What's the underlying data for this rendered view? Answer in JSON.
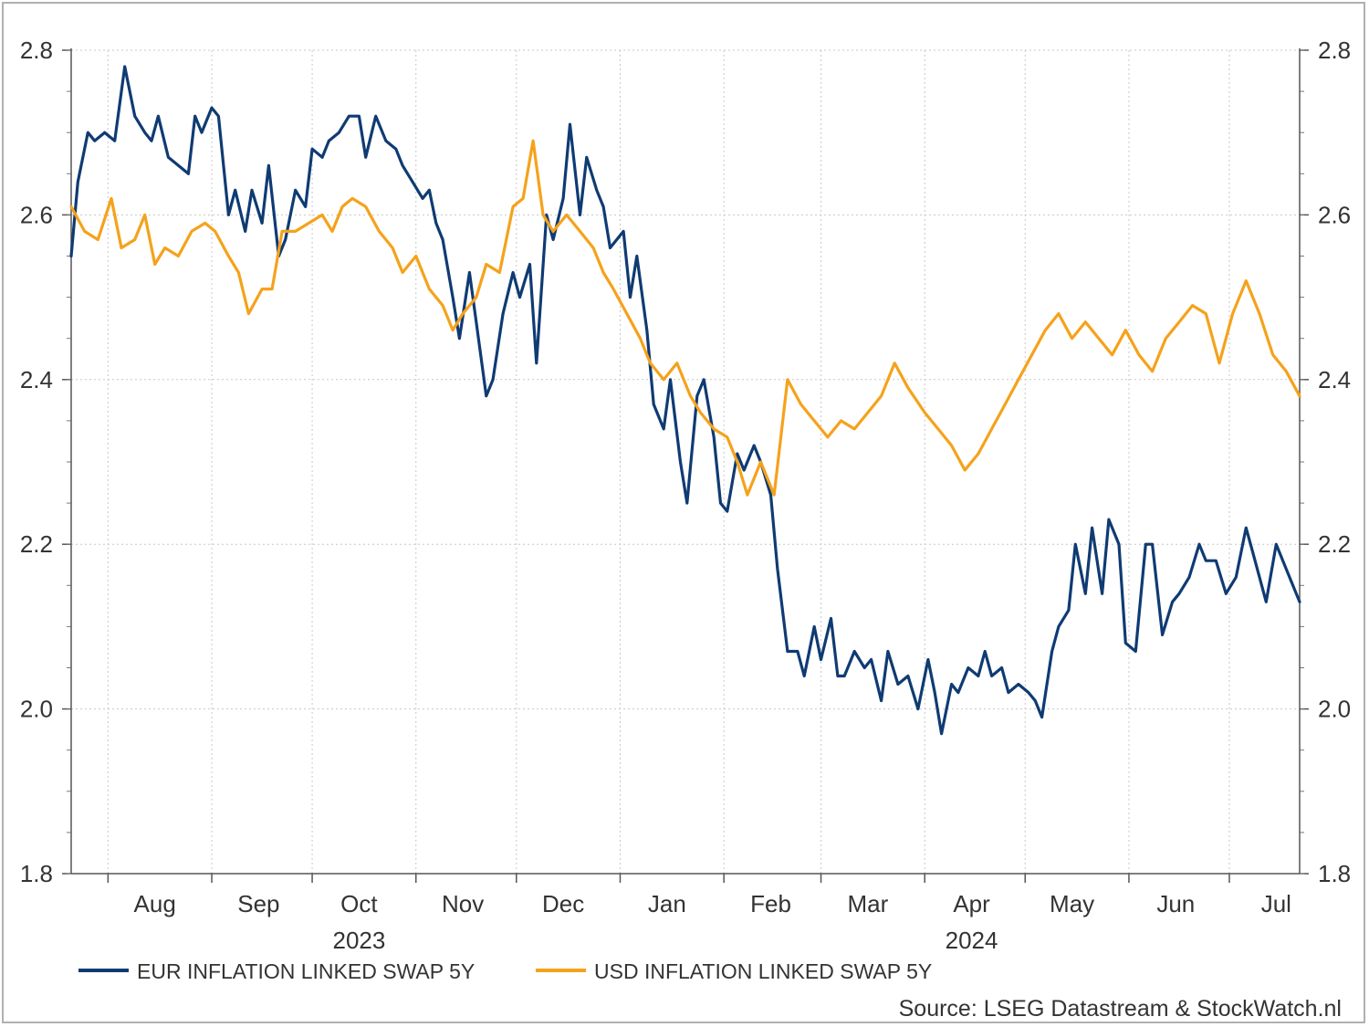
{
  "chart_data": {
    "type": "line",
    "x_axis": {
      "type": "date",
      "range": [
        "2023-07-21",
        "2024-07-22"
      ],
      "tick_labels": [
        {
          "label": "Aug",
          "date": "2023-08-15"
        },
        {
          "label": "Sep",
          "date": "2023-09-15"
        },
        {
          "label": "Oct",
          "date": "2023-10-15"
        },
        {
          "label": "Nov",
          "date": "2023-11-15"
        },
        {
          "label": "Dec",
          "date": "2023-12-15"
        },
        {
          "label": "Jan",
          "date": "2024-01-15"
        },
        {
          "label": "Feb",
          "date": "2024-02-15"
        },
        {
          "label": "Mar",
          "date": "2024-03-15"
        },
        {
          "label": "Apr",
          "date": "2024-04-15"
        },
        {
          "label": "May",
          "date": "2024-05-15"
        },
        {
          "label": "Jun",
          "date": "2024-06-15"
        },
        {
          "label": "Jul",
          "date": "2024-07-15"
        }
      ],
      "month_boundaries": [
        "2023-08-01",
        "2023-09-01",
        "2023-10-01",
        "2023-11-01",
        "2023-12-01",
        "2024-01-01",
        "2024-02-01",
        "2024-03-01",
        "2024-04-01",
        "2024-05-01",
        "2024-06-01",
        "2024-07-01"
      ],
      "year_labels": [
        {
          "label": "2023",
          "date": "2023-10-15"
        },
        {
          "label": "2024",
          "date": "2024-04-15"
        }
      ]
    },
    "y_axis": {
      "range": [
        1.8,
        2.8
      ],
      "ticks": [
        1.8,
        2.0,
        2.2,
        2.4,
        2.6,
        2.8
      ],
      "tick_labels": [
        "1.8",
        "2.0",
        "2.2",
        "2.4",
        "2.6",
        "2.8"
      ],
      "minor_step": 0.05,
      "right_axis_mirrored": true
    },
    "grid": true,
    "legend_position": "bottom-left",
    "series": [
      {
        "name": "EUR INFLATION LINKED SWAP 5Y",
        "color": "#0f3b73",
        "points": [
          [
            "2023-07-21",
            2.55
          ],
          [
            "2023-07-23",
            2.64
          ],
          [
            "2023-07-26",
            2.7
          ],
          [
            "2023-07-28",
            2.69
          ],
          [
            "2023-07-31",
            2.7
          ],
          [
            "2023-08-03",
            2.69
          ],
          [
            "2023-08-06",
            2.78
          ],
          [
            "2023-08-09",
            2.72
          ],
          [
            "2023-08-12",
            2.7
          ],
          [
            "2023-08-14",
            2.69
          ],
          [
            "2023-08-16",
            2.72
          ],
          [
            "2023-08-19",
            2.67
          ],
          [
            "2023-08-22",
            2.66
          ],
          [
            "2023-08-25",
            2.65
          ],
          [
            "2023-08-27",
            2.72
          ],
          [
            "2023-08-29",
            2.7
          ],
          [
            "2023-09-01",
            2.73
          ],
          [
            "2023-09-03",
            2.72
          ],
          [
            "2023-09-06",
            2.6
          ],
          [
            "2023-09-08",
            2.63
          ],
          [
            "2023-09-11",
            2.58
          ],
          [
            "2023-09-13",
            2.63
          ],
          [
            "2023-09-16",
            2.59
          ],
          [
            "2023-09-18",
            2.66
          ],
          [
            "2023-09-21",
            2.55
          ],
          [
            "2023-09-23",
            2.57
          ],
          [
            "2023-09-26",
            2.63
          ],
          [
            "2023-09-29",
            2.61
          ],
          [
            "2023-10-01",
            2.68
          ],
          [
            "2023-10-04",
            2.67
          ],
          [
            "2023-10-06",
            2.69
          ],
          [
            "2023-10-09",
            2.7
          ],
          [
            "2023-10-12",
            2.72
          ],
          [
            "2023-10-15",
            2.72
          ],
          [
            "2023-10-17",
            2.67
          ],
          [
            "2023-10-20",
            2.72
          ],
          [
            "2023-10-23",
            2.69
          ],
          [
            "2023-10-26",
            2.68
          ],
          [
            "2023-10-28",
            2.66
          ],
          [
            "2023-10-31",
            2.64
          ],
          [
            "2023-11-03",
            2.62
          ],
          [
            "2023-11-05",
            2.63
          ],
          [
            "2023-11-07",
            2.59
          ],
          [
            "2023-11-09",
            2.57
          ],
          [
            "2023-11-12",
            2.5
          ],
          [
            "2023-11-14",
            2.45
          ],
          [
            "2023-11-17",
            2.53
          ],
          [
            "2023-11-19",
            2.47
          ],
          [
            "2023-11-22",
            2.38
          ],
          [
            "2023-11-24",
            2.4
          ],
          [
            "2023-11-27",
            2.48
          ],
          [
            "2023-11-30",
            2.53
          ],
          [
            "2023-12-02",
            2.5
          ],
          [
            "2023-12-05",
            2.54
          ],
          [
            "2023-12-07",
            2.42
          ],
          [
            "2023-12-10",
            2.6
          ],
          [
            "2023-12-12",
            2.57
          ],
          [
            "2023-12-15",
            2.62
          ],
          [
            "2023-12-17",
            2.71
          ],
          [
            "2023-12-20",
            2.6
          ],
          [
            "2023-12-22",
            2.67
          ],
          [
            "2023-12-25",
            2.63
          ],
          [
            "2023-12-27",
            2.61
          ],
          [
            "2023-12-29",
            2.56
          ],
          [
            "2024-01-02",
            2.58
          ],
          [
            "2024-01-04",
            2.5
          ],
          [
            "2024-01-06",
            2.55
          ],
          [
            "2024-01-09",
            2.46
          ],
          [
            "2024-01-11",
            2.37
          ],
          [
            "2024-01-14",
            2.34
          ],
          [
            "2024-01-16",
            2.4
          ],
          [
            "2024-01-19",
            2.3
          ],
          [
            "2024-01-21",
            2.25
          ],
          [
            "2024-01-24",
            2.38
          ],
          [
            "2024-01-26",
            2.4
          ],
          [
            "2024-01-29",
            2.33
          ],
          [
            "2024-01-31",
            2.25
          ],
          [
            "2024-02-02",
            2.24
          ],
          [
            "2024-02-05",
            2.31
          ],
          [
            "2024-02-07",
            2.29
          ],
          [
            "2024-02-10",
            2.32
          ],
          [
            "2024-02-12",
            2.3
          ],
          [
            "2024-02-15",
            2.26
          ],
          [
            "2024-02-17",
            2.17
          ],
          [
            "2024-02-20",
            2.07
          ],
          [
            "2024-02-23",
            2.07
          ],
          [
            "2024-02-25",
            2.04
          ],
          [
            "2024-02-28",
            2.1
          ],
          [
            "2024-03-01",
            2.06
          ],
          [
            "2024-03-04",
            2.11
          ],
          [
            "2024-03-06",
            2.04
          ],
          [
            "2024-03-08",
            2.04
          ],
          [
            "2024-03-11",
            2.07
          ],
          [
            "2024-03-14",
            2.05
          ],
          [
            "2024-03-16",
            2.06
          ],
          [
            "2024-03-19",
            2.01
          ],
          [
            "2024-03-21",
            2.07
          ],
          [
            "2024-03-24",
            2.03
          ],
          [
            "2024-03-27",
            2.04
          ],
          [
            "2024-03-30",
            2.0
          ],
          [
            "2024-04-02",
            2.06
          ],
          [
            "2024-04-04",
            2.02
          ],
          [
            "2024-04-06",
            1.97
          ],
          [
            "2024-04-09",
            2.03
          ],
          [
            "2024-04-11",
            2.02
          ],
          [
            "2024-04-14",
            2.05
          ],
          [
            "2024-04-17",
            2.04
          ],
          [
            "2024-04-19",
            2.07
          ],
          [
            "2024-04-21",
            2.04
          ],
          [
            "2024-04-24",
            2.05
          ],
          [
            "2024-04-26",
            2.02
          ],
          [
            "2024-04-29",
            2.03
          ],
          [
            "2024-05-02",
            2.02
          ],
          [
            "2024-05-04",
            2.01
          ],
          [
            "2024-05-06",
            1.99
          ],
          [
            "2024-05-09",
            2.07
          ],
          [
            "2024-05-11",
            2.1
          ],
          [
            "2024-05-14",
            2.12
          ],
          [
            "2024-05-16",
            2.2
          ],
          [
            "2024-05-19",
            2.14
          ],
          [
            "2024-05-21",
            2.22
          ],
          [
            "2024-05-24",
            2.14
          ],
          [
            "2024-05-26",
            2.23
          ],
          [
            "2024-05-29",
            2.2
          ],
          [
            "2024-05-31",
            2.08
          ],
          [
            "2024-06-03",
            2.07
          ],
          [
            "2024-06-06",
            2.2
          ],
          [
            "2024-06-08",
            2.2
          ],
          [
            "2024-06-11",
            2.09
          ],
          [
            "2024-06-14",
            2.13
          ],
          [
            "2024-06-16",
            2.14
          ],
          [
            "2024-06-19",
            2.16
          ],
          [
            "2024-06-22",
            2.2
          ],
          [
            "2024-06-24",
            2.18
          ],
          [
            "2024-06-27",
            2.18
          ],
          [
            "2024-06-30",
            2.14
          ],
          [
            "2024-07-03",
            2.16
          ],
          [
            "2024-07-06",
            2.22
          ],
          [
            "2024-07-08",
            2.19
          ],
          [
            "2024-07-12",
            2.13
          ],
          [
            "2024-07-15",
            2.2
          ],
          [
            "2024-07-18",
            2.17
          ],
          [
            "2024-07-21",
            2.14
          ],
          [
            "2024-07-22",
            2.13
          ]
        ]
      },
      {
        "name": "USD INFLATION LINKED SWAP 5Y",
        "color": "#f5a21b",
        "points": [
          [
            "2023-07-21",
            2.61
          ],
          [
            "2023-07-25",
            2.58
          ],
          [
            "2023-07-29",
            2.57
          ],
          [
            "2023-08-02",
            2.62
          ],
          [
            "2023-08-05",
            2.56
          ],
          [
            "2023-08-09",
            2.57
          ],
          [
            "2023-08-12",
            2.6
          ],
          [
            "2023-08-15",
            2.54
          ],
          [
            "2023-08-18",
            2.56
          ],
          [
            "2023-08-22",
            2.55
          ],
          [
            "2023-08-26",
            2.58
          ],
          [
            "2023-08-30",
            2.59
          ],
          [
            "2023-09-02",
            2.58
          ],
          [
            "2023-09-06",
            2.55
          ],
          [
            "2023-09-09",
            2.53
          ],
          [
            "2023-09-12",
            2.48
          ],
          [
            "2023-09-16",
            2.51
          ],
          [
            "2023-09-19",
            2.51
          ],
          [
            "2023-09-22",
            2.58
          ],
          [
            "2023-09-26",
            2.58
          ],
          [
            "2023-09-30",
            2.59
          ],
          [
            "2023-10-04",
            2.6
          ],
          [
            "2023-10-07",
            2.58
          ],
          [
            "2023-10-10",
            2.61
          ],
          [
            "2023-10-13",
            2.62
          ],
          [
            "2023-10-17",
            2.61
          ],
          [
            "2023-10-21",
            2.58
          ],
          [
            "2023-10-25",
            2.56
          ],
          [
            "2023-10-28",
            2.53
          ],
          [
            "2023-11-01",
            2.55
          ],
          [
            "2023-11-05",
            2.51
          ],
          [
            "2023-11-09",
            2.49
          ],
          [
            "2023-11-12",
            2.46
          ],
          [
            "2023-11-15",
            2.48
          ],
          [
            "2023-11-19",
            2.5
          ],
          [
            "2023-11-22",
            2.54
          ],
          [
            "2023-11-26",
            2.53
          ],
          [
            "2023-11-30",
            2.61
          ],
          [
            "2023-12-03",
            2.62
          ],
          [
            "2023-12-06",
            2.69
          ],
          [
            "2023-12-09",
            2.6
          ],
          [
            "2023-12-12",
            2.58
          ],
          [
            "2023-12-16",
            2.6
          ],
          [
            "2023-12-20",
            2.58
          ],
          [
            "2023-12-24",
            2.56
          ],
          [
            "2023-12-27",
            2.53
          ],
          [
            "2023-12-30",
            2.51
          ],
          [
            "2024-01-03",
            2.48
          ],
          [
            "2024-01-07",
            2.45
          ],
          [
            "2024-01-10",
            2.42
          ],
          [
            "2024-01-14",
            2.4
          ],
          [
            "2024-01-18",
            2.42
          ],
          [
            "2024-01-22",
            2.38
          ],
          [
            "2024-01-25",
            2.36
          ],
          [
            "2024-01-29",
            2.34
          ],
          [
            "2024-02-02",
            2.33
          ],
          [
            "2024-02-05",
            2.3
          ],
          [
            "2024-02-08",
            2.26
          ],
          [
            "2024-02-12",
            2.3
          ],
          [
            "2024-02-16",
            2.26
          ],
          [
            "2024-02-20",
            2.4
          ],
          [
            "2024-02-24",
            2.37
          ],
          [
            "2024-02-28",
            2.35
          ],
          [
            "2024-03-03",
            2.33
          ],
          [
            "2024-03-07",
            2.35
          ],
          [
            "2024-03-11",
            2.34
          ],
          [
            "2024-03-15",
            2.36
          ],
          [
            "2024-03-19",
            2.38
          ],
          [
            "2024-03-23",
            2.42
          ],
          [
            "2024-03-27",
            2.39
          ],
          [
            "2024-04-01",
            2.36
          ],
          [
            "2024-04-05",
            2.34
          ],
          [
            "2024-04-09",
            2.32
          ],
          [
            "2024-04-13",
            2.29
          ],
          [
            "2024-04-17",
            2.31
          ],
          [
            "2024-04-21",
            2.34
          ],
          [
            "2024-04-25",
            2.37
          ],
          [
            "2024-04-29",
            2.4
          ],
          [
            "2024-05-03",
            2.43
          ],
          [
            "2024-05-07",
            2.46
          ],
          [
            "2024-05-11",
            2.48
          ],
          [
            "2024-05-15",
            2.45
          ],
          [
            "2024-05-19",
            2.47
          ],
          [
            "2024-05-23",
            2.45
          ],
          [
            "2024-05-27",
            2.43
          ],
          [
            "2024-05-31",
            2.46
          ],
          [
            "2024-06-04",
            2.43
          ],
          [
            "2024-06-08",
            2.41
          ],
          [
            "2024-06-12",
            2.45
          ],
          [
            "2024-06-16",
            2.47
          ],
          [
            "2024-06-20",
            2.49
          ],
          [
            "2024-06-24",
            2.48
          ],
          [
            "2024-06-28",
            2.42
          ],
          [
            "2024-07-02",
            2.48
          ],
          [
            "2024-07-06",
            2.52
          ],
          [
            "2024-07-10",
            2.48
          ],
          [
            "2024-07-14",
            2.43
          ],
          [
            "2024-07-18",
            2.41
          ],
          [
            "2024-07-22",
            2.38
          ]
        ]
      }
    ],
    "source": "Source: LSEG Datastream & StockWatch.nl"
  }
}
